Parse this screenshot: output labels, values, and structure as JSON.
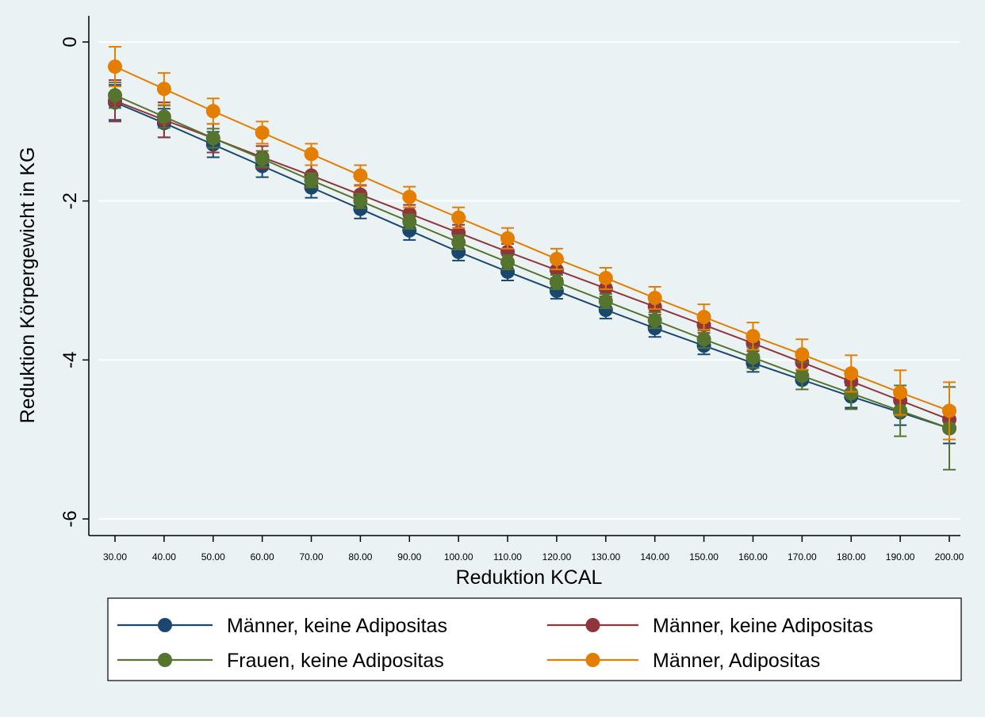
{
  "chart_data": {
    "type": "line",
    "xlabel": "Reduktion KCAL",
    "ylabel": "Reduktion Körpergewicht in KG",
    "x": [
      "30.00",
      "40.00",
      "50.00",
      "60.00",
      "70.00",
      "80.00",
      "90.00",
      "100.00",
      "110.00",
      "120.00",
      "130.00",
      "140.00",
      "150.00",
      "160.00",
      "170.00",
      "180.00",
      "190.00",
      "200.00"
    ],
    "ylim": [
      -6.2,
      0.05
    ],
    "yticks": [
      {
        "value": 0,
        "label": "0"
      },
      {
        "value": -2,
        "label": "-2"
      },
      {
        "value": -4,
        "label": "-4"
      },
      {
        "value": -6,
        "label": "-6"
      }
    ],
    "grid": true,
    "legend_position": "bottom",
    "series": [
      {
        "name": "Männer, keine Adipositas",
        "color": "#1a476f",
        "values": [
          -0.76,
          -1.02,
          -1.29,
          -1.56,
          -1.83,
          -2.1,
          -2.37,
          -2.64,
          -2.89,
          -3.13,
          -3.37,
          -3.6,
          -3.82,
          -4.04,
          -4.25,
          -4.46,
          -4.66,
          -4.86
        ],
        "ci_low": [
          -0.98,
          -1.2,
          -1.45,
          -1.7,
          -1.96,
          -2.22,
          -2.49,
          -2.75,
          -3.0,
          -3.23,
          -3.48,
          -3.71,
          -3.93,
          -4.15,
          -4.37,
          -4.6,
          -4.82,
          -5.05
        ],
        "ci_high": [
          -0.54,
          -0.84,
          -1.13,
          -1.42,
          -1.7,
          -1.98,
          -2.25,
          -2.53,
          -2.78,
          -3.03,
          -3.26,
          -3.49,
          -3.71,
          -3.93,
          -4.13,
          -4.32,
          -4.5,
          -4.67
        ]
      },
      {
        "name": "Männer, keine Adipositas",
        "color": "#90353b",
        "values": [
          -0.74,
          -0.98,
          -1.21,
          -1.45,
          -1.68,
          -1.92,
          -2.16,
          -2.4,
          -2.64,
          -2.87,
          -3.1,
          -3.33,
          -3.56,
          -3.79,
          -4.03,
          -4.27,
          -4.51,
          -4.75
        ],
        "ci_low": [
          -1.0,
          -1.2,
          -1.39,
          -1.59,
          -1.81,
          -2.04,
          -2.27,
          -2.5,
          -2.74,
          -2.97,
          -3.2,
          -3.43,
          -3.66,
          -3.89,
          -4.13,
          -4.38,
          -4.63,
          -4.9
        ],
        "ci_high": [
          -0.48,
          -0.76,
          -1.03,
          -1.31,
          -1.55,
          -1.8,
          -2.05,
          -2.3,
          -2.54,
          -2.77,
          -3.0,
          -3.23,
          -3.46,
          -3.69,
          -3.93,
          -4.16,
          -4.39,
          -4.6
        ]
      },
      {
        "name": "Frauen, keine Adipositas",
        "color": "#55752f",
        "values": [
          -0.67,
          -0.94,
          -1.21,
          -1.47,
          -1.74,
          -2.0,
          -2.26,
          -2.52,
          -2.77,
          -3.02,
          -3.26,
          -3.5,
          -3.74,
          -3.97,
          -4.2,
          -4.42,
          -4.64,
          -4.86
        ],
        "ci_low": [
          -0.83,
          -1.08,
          -1.33,
          -1.57,
          -1.83,
          -2.09,
          -2.35,
          -2.61,
          -2.86,
          -3.11,
          -3.35,
          -3.6,
          -3.85,
          -4.1,
          -4.37,
          -4.62,
          -4.96,
          -5.38
        ],
        "ci_high": [
          -0.51,
          -0.8,
          -1.09,
          -1.37,
          -1.65,
          -1.91,
          -2.17,
          -2.43,
          -2.68,
          -2.93,
          -3.17,
          -3.4,
          -3.63,
          -3.84,
          -4.03,
          -4.22,
          -4.32,
          -4.34
        ]
      },
      {
        "name": "Männer, Adipositas",
        "color": "#e37e00",
        "values": [
          -0.31,
          -0.59,
          -0.87,
          -1.14,
          -1.41,
          -1.68,
          -1.95,
          -2.21,
          -2.47,
          -2.73,
          -2.97,
          -3.22,
          -3.46,
          -3.7,
          -3.93,
          -4.17,
          -4.41,
          -4.64
        ],
        "ci_low": [
          -0.56,
          -0.79,
          -1.03,
          -1.28,
          -1.55,
          -1.81,
          -2.08,
          -2.34,
          -2.6,
          -2.86,
          -3.11,
          -3.36,
          -3.62,
          -3.87,
          -4.12,
          -4.4,
          -4.69,
          -5.0
        ],
        "ci_high": [
          -0.06,
          -0.39,
          -0.71,
          -1.0,
          -1.28,
          -1.55,
          -1.82,
          -2.08,
          -2.34,
          -2.6,
          -2.84,
          -3.08,
          -3.3,
          -3.53,
          -3.74,
          -3.94,
          -4.13,
          -4.28
        ]
      }
    ]
  }
}
